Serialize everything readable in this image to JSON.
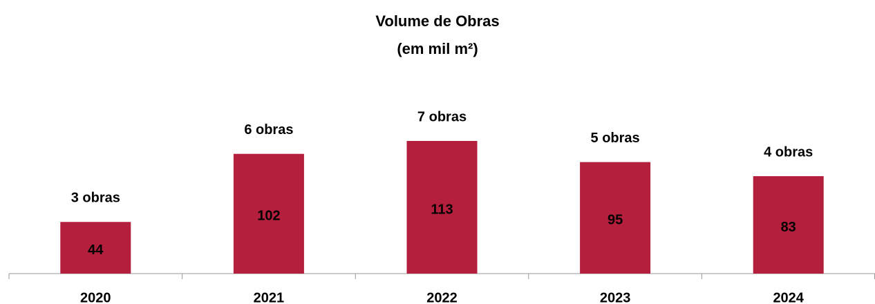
{
  "chart_data": {
    "type": "bar",
    "title": "Volume de Obras",
    "subtitle": "(em mil m²)",
    "categories": [
      "2020",
      "2021",
      "2022",
      "2023",
      "2024"
    ],
    "values": [
      44,
      102,
      113,
      95,
      83
    ],
    "annotations": [
      "3 obras",
      "6 obras",
      "7 obras",
      "5 obras",
      "4 obras"
    ],
    "color": "#b41f3d"
  }
}
